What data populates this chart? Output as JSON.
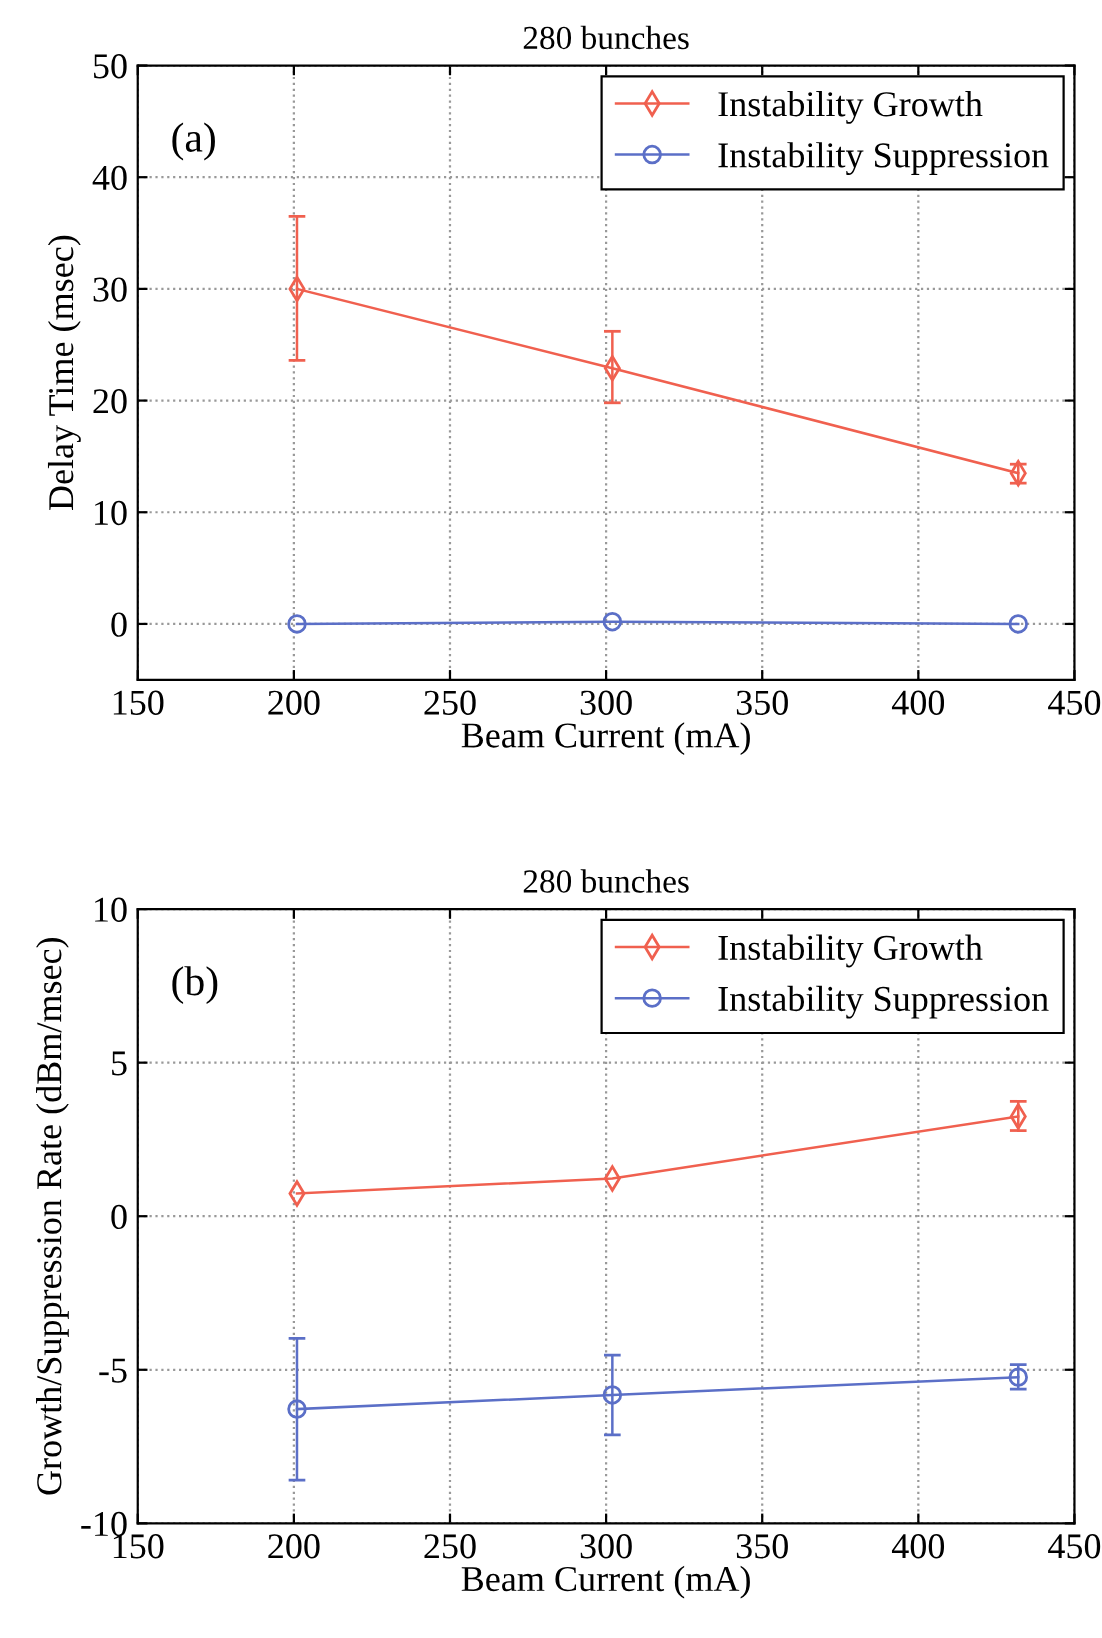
{
  "chart_data": [
    {
      "type": "line",
      "title": "280 bunches",
      "xlabel": "Beam Current (mA)",
      "ylabel": "Delay Time (msec)",
      "annotations": [
        "(a)"
      ],
      "x": [
        201,
        302,
        432
      ],
      "xlim": [
        150,
        450
      ],
      "xticks": [
        150,
        200,
        250,
        300,
        350,
        400,
        450
      ],
      "ylim": [
        -5,
        50
      ],
      "yticks": [
        0,
        10,
        20,
        30,
        40,
        50
      ],
      "grid": true,
      "legend": "top right",
      "line_style": "solid",
      "series": [
        {
          "name": "Instability Growth",
          "color": "#f0604f",
          "marker": "diamond",
          "values": [
            30.0,
            22.9,
            13.5
          ],
          "errors": [
            [
              23.6,
              36.5
            ],
            [
              19.8,
              26.2
            ],
            [
              12.6,
              14.3
            ]
          ]
        },
        {
          "name": "Instability Suppression",
          "color": "#5b6fc7",
          "marker": "circle",
          "values": [
            0,
            0.2,
            0
          ]
        }
      ]
    },
    {
      "type": "line",
      "title": "280 bunches",
      "xlabel": "Beam Current (mA)",
      "ylabel": "Growth/Suppression Rate (dBm/msec)",
      "annotations": [
        "(b)"
      ],
      "x": [
        201,
        302,
        432
      ],
      "xlim": [
        150,
        450
      ],
      "xticks": [
        150,
        200,
        250,
        300,
        350,
        400,
        450
      ],
      "ylim": [
        -10,
        10
      ],
      "yticks": [
        -10,
        -5,
        0,
        5,
        10
      ],
      "grid": true,
      "legend": "top right",
      "line_style": "solid",
      "series": [
        {
          "name": "Instability Growth",
          "color": "#f0604f",
          "marker": "diamond",
          "values": [
            0.74,
            1.23,
            3.25
          ],
          "errors": [
            null,
            null,
            [
              2.79,
              3.74
            ]
          ]
        },
        {
          "name": "Instability Suppression",
          "color": "#5b6fc7",
          "marker": "circle",
          "values": [
            -6.28,
            -5.82,
            -5.24
          ],
          "errors": [
            [
              -8.59,
              -3.98
            ],
            [
              -7.12,
              -4.52
            ],
            [
              -5.63,
              -4.83
            ]
          ]
        }
      ]
    }
  ]
}
